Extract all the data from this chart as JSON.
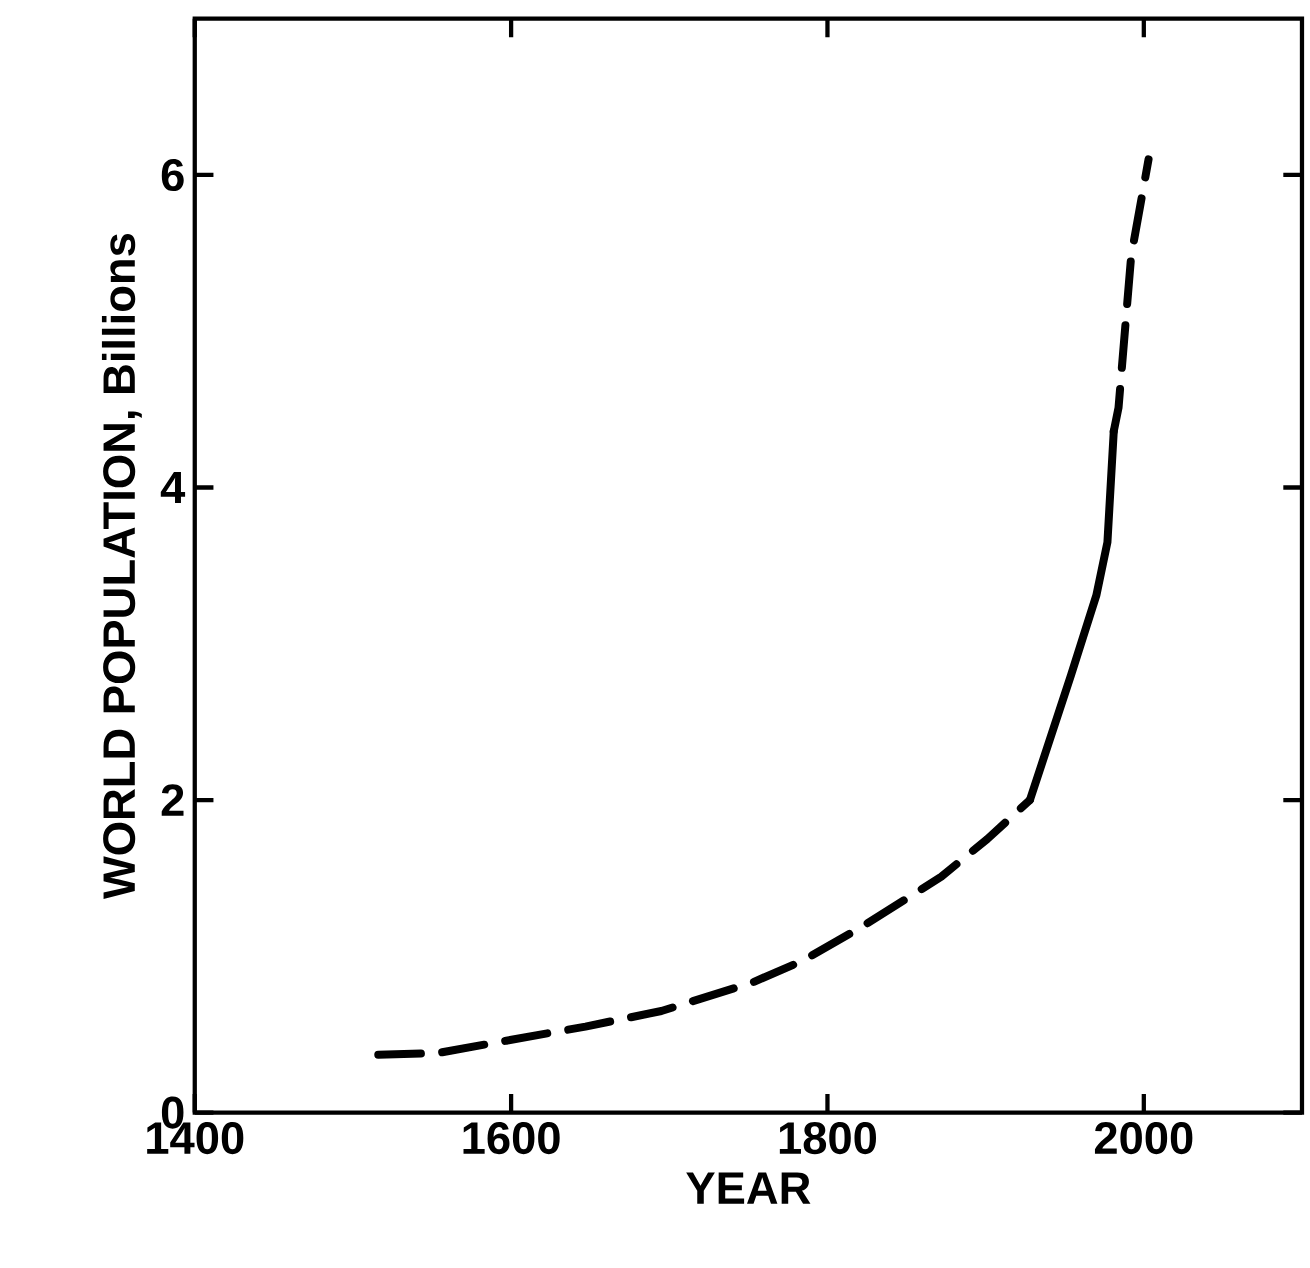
{
  "chart_data": {
    "type": "line",
    "xlabel": "YEAR",
    "ylabel": "WORLD POPULATION, Billions",
    "xlim": [
      1400,
      2100
    ],
    "ylim": [
      0,
      7
    ],
    "xticks": [
      1400,
      1600,
      1800,
      2000
    ],
    "yticks": [
      0,
      2,
      4,
      6
    ],
    "marker": "none",
    "series": [
      {
        "color": "#000000",
        "line_style": "dashed",
        "x": [
          1516,
          1553,
          1597,
          1647,
          1695,
          1752,
          1784,
          1822,
          1872,
          1901,
          1928
        ],
        "values": [
          0.37,
          0.38,
          0.46,
          0.55,
          0.65,
          0.83,
          0.97,
          1.19,
          1.51,
          1.75,
          2.0
        ]
      },
      {
        "color": "#000000",
        "line_style": "solid",
        "x": [
          1928,
          1954,
          1970,
          1977,
          1981
        ],
        "values": [
          2.0,
          2.8,
          3.31,
          3.65,
          4.36
        ]
      },
      {
        "color": "#000000",
        "line_style": "dashed",
        "x": [
          1981,
          1984,
          1992,
          2003
        ],
        "values": [
          4.36,
          4.51,
          5.48,
          6.1
        ]
      }
    ]
  }
}
